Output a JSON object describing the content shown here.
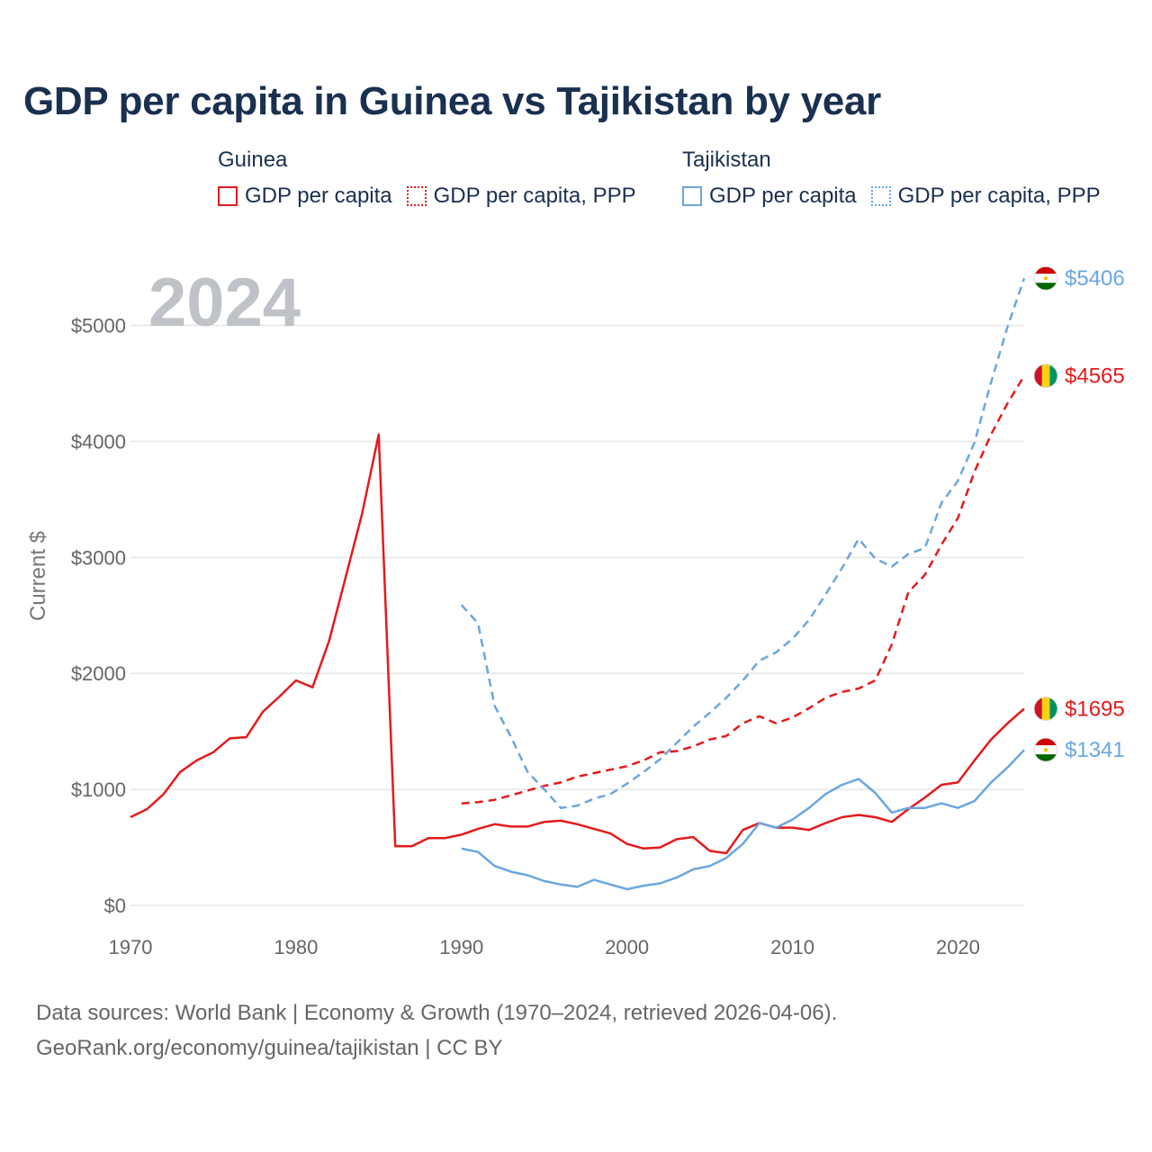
{
  "title": "GDP per capita in Guinea vs Tajikistan by year",
  "legend": {
    "groups": [
      {
        "name": "Guinea",
        "color": "#e41a1c",
        "items": [
          {
            "label": "GDP per capita",
            "style": "solid"
          },
          {
            "label": "GDP per capita, PPP",
            "style": "dotted"
          }
        ]
      },
      {
        "name": "Tajikistan",
        "color": "#6aa6e0",
        "items": [
          {
            "label": "GDP per capita",
            "style": "solid"
          },
          {
            "label": "GDP per capita, PPP",
            "style": "dotted"
          }
        ]
      }
    ]
  },
  "year_watermark": "2024",
  "footer": {
    "line1": "Data sources: World Bank | Economy & Growth (1970–2024, retrieved 2026-04-06).",
    "line2": "GeoRank.org/economy/guinea/tajikistan | CC BY"
  },
  "chart_data": {
    "type": "line",
    "title": "GDP per capita in Guinea vs Tajikistan by year",
    "xlabel": "",
    "ylabel": "Current $",
    "xlim": [
      1970,
      2024
    ],
    "ylim": [
      0,
      5400
    ],
    "x_ticks": [
      1970,
      1980,
      1990,
      2000,
      2010,
      2020
    ],
    "y_ticks": [
      0,
      1000,
      2000,
      3000,
      4000,
      5000
    ],
    "y_tick_labels": [
      "$0",
      "$1000",
      "$2000",
      "$3000",
      "$4000",
      "$5000"
    ],
    "grid": true,
    "series": [
      {
        "name": "Guinea GDP per capita",
        "country": "Guinea",
        "color": "#e41a1c",
        "dash": "solid",
        "end_label": "$1695",
        "x": [
          1970,
          1971,
          1972,
          1973,
          1974,
          1975,
          1976,
          1977,
          1978,
          1979,
          1980,
          1981,
          1982,
          1983,
          1984,
          1985,
          1986,
          1987,
          1988,
          1989,
          1990,
          1991,
          1992,
          1993,
          1994,
          1995,
          1996,
          1997,
          1998,
          1999,
          2000,
          2001,
          2002,
          2003,
          2004,
          2005,
          2006,
          2007,
          2008,
          2009,
          2010,
          2011,
          2012,
          2013,
          2014,
          2015,
          2016,
          2017,
          2018,
          2019,
          2020,
          2021,
          2022,
          2023,
          2024
        ],
        "values": [
          760,
          830,
          960,
          1150,
          1250,
          1320,
          1440,
          1450,
          1670,
          1800,
          1940,
          1880,
          2280,
          2830,
          3380,
          4060,
          510,
          510,
          580,
          580,
          610,
          660,
          700,
          680,
          680,
          720,
          730,
          700,
          660,
          620,
          530,
          490,
          500,
          570,
          590,
          470,
          450,
          650,
          710,
          670,
          670,
          650,
          710,
          760,
          780,
          760,
          720,
          830,
          930,
          1040,
          1060,
          1250,
          1430,
          1570,
          1695
        ]
      },
      {
        "name": "Guinea GDP per capita, PPP",
        "country": "Guinea",
        "color": "#e41a1c",
        "dash": "dashed",
        "end_label": "$4565",
        "x": [
          1990,
          1991,
          1992,
          1993,
          1994,
          1995,
          1996,
          1997,
          1998,
          1999,
          2000,
          2001,
          2002,
          2003,
          2004,
          2005,
          2006,
          2007,
          2008,
          2009,
          2010,
          2011,
          2012,
          2013,
          2014,
          2015,
          2016,
          2017,
          2018,
          2019,
          2020,
          2021,
          2022,
          2023,
          2024
        ],
        "values": [
          880,
          890,
          910,
          950,
          990,
          1030,
          1060,
          1110,
          1140,
          1170,
          1200,
          1250,
          1320,
          1330,
          1370,
          1430,
          1460,
          1570,
          1630,
          1570,
          1620,
          1700,
          1790,
          1840,
          1870,
          1940,
          2250,
          2700,
          2850,
          3110,
          3340,
          3740,
          4060,
          4330,
          4565
        ]
      },
      {
        "name": "Tajikistan GDP per capita",
        "country": "Tajikistan",
        "color": "#6aa6e0",
        "dash": "solid",
        "end_label": "$1341",
        "x": [
          1990,
          1991,
          1992,
          1993,
          1994,
          1995,
          1996,
          1997,
          1998,
          1999,
          2000,
          2001,
          2002,
          2003,
          2004,
          2005,
          2006,
          2007,
          2008,
          2009,
          2010,
          2011,
          2012,
          2013,
          2014,
          2015,
          2016,
          2017,
          2018,
          2019,
          2020,
          2021,
          2022,
          2023,
          2024
        ],
        "values": [
          490,
          460,
          340,
          290,
          260,
          210,
          180,
          160,
          220,
          180,
          140,
          170,
          190,
          240,
          310,
          340,
          410,
          530,
          710,
          670,
          740,
          840,
          960,
          1040,
          1090,
          970,
          800,
          840,
          840,
          880,
          840,
          900,
          1060,
          1190,
          1341
        ]
      },
      {
        "name": "Tajikistan GDP per capita, PPP",
        "country": "Tajikistan",
        "color": "#6aa6e0",
        "dash": "dashed",
        "end_label": "$5406",
        "x": [
          1990,
          1991,
          1992,
          1993,
          1994,
          1995,
          1996,
          1997,
          1998,
          1999,
          2000,
          2001,
          2002,
          2003,
          2004,
          2005,
          2006,
          2007,
          2008,
          2009,
          2010,
          2011,
          2012,
          2013,
          2014,
          2015,
          2016,
          2017,
          2018,
          2019,
          2020,
          2021,
          2022,
          2023,
          2024
        ],
        "values": [
          2590,
          2430,
          1720,
          1450,
          1150,
          1000,
          840,
          860,
          920,
          960,
          1050,
          1150,
          1260,
          1400,
          1540,
          1660,
          1790,
          1940,
          2110,
          2180,
          2300,
          2460,
          2680,
          2910,
          3160,
          2990,
          2920,
          3030,
          3080,
          3470,
          3660,
          3990,
          4510,
          4990,
          5406
        ]
      }
    ]
  }
}
